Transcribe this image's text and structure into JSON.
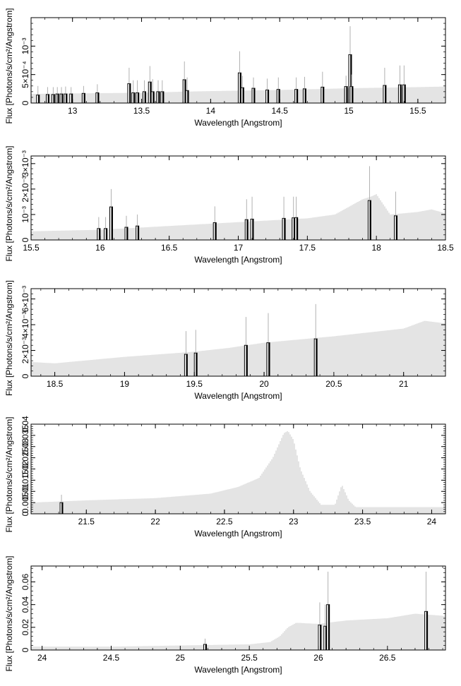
{
  "figure": {
    "common_ylabel": "Flux [Photons/s/cm²/Angstrom]",
    "common_xlabel": "Wavelength [Angstrom]",
    "colors": {
      "model": "#bdbdbd",
      "data": "#000000",
      "bin_outline": "#000000",
      "frame": "#000000"
    }
  },
  "chart_data": [
    {
      "type": "bar",
      "xlabel": "Wavelength [Angstrom]",
      "ylabel": "Flux [Photons/s/cm²/Angstrom]",
      "xlim": [
        12.7,
        15.7
      ],
      "ylim": [
        0,
        0.0015
      ],
      "xticks": [
        13,
        13.5,
        14,
        14.5,
        15,
        15.5
      ],
      "xtick_labels": [
        "13",
        "13.5",
        "14",
        "14.5",
        "15",
        "15.5"
      ],
      "yticks": [
        0,
        0.0005,
        0.001
      ],
      "ytick_labels": [
        "0",
        "5×10⁻⁴",
        "10⁻³"
      ],
      "grid": false,
      "series": [
        {
          "role": "model",
          "style": "dense vertical lines",
          "points": [
            [
              12.7,
              0.00016
            ],
            [
              13.0,
              0.00017
            ],
            [
              13.5,
              0.00018
            ],
            [
              13.8,
              0.0002
            ],
            [
              14.0,
              0.00021
            ],
            [
              14.5,
              0.00023
            ],
            [
              15.0,
              0.00026
            ],
            [
              15.5,
              0.00028
            ],
            [
              15.7,
              0.00029
            ]
          ]
        },
        {
          "role": "data",
          "style": "bins with error bars",
          "bins": [
            [
              12.75,
              0.00014,
              0.0003
            ],
            [
              12.82,
              0.00015,
              0.00028
            ],
            [
              12.86,
              0.00015,
              0.00028
            ],
            [
              12.89,
              0.00016,
              0.00028
            ],
            [
              12.92,
              0.00016,
              0.00028
            ],
            [
              12.95,
              0.00016,
              0.00029
            ],
            [
              12.99,
              0.00016,
              0.00028
            ],
            [
              13.08,
              0.00017,
              0.0003
            ],
            [
              13.18,
              0.00018,
              0.00033
            ],
            [
              13.41,
              0.00034,
              0.00062
            ],
            [
              13.44,
              0.00018,
              0.0004
            ],
            [
              13.47,
              0.00018,
              0.0004
            ],
            [
              13.52,
              0.0002,
              0.0004
            ],
            [
              13.56,
              0.00037,
              0.00065
            ],
            [
              13.58,
              0.0002,
              0.00042
            ],
            [
              13.62,
              0.0002,
              0.0004
            ],
            [
              13.65,
              0.0002,
              0.0004
            ],
            [
              13.81,
              0.00041,
              0.00073
            ],
            [
              13.83,
              0.00022,
              0.00045
            ],
            [
              14.21,
              0.00053,
              0.00091
            ],
            [
              14.23,
              0.00027,
              0.00048
            ],
            [
              14.31,
              0.00026,
              0.00045
            ],
            [
              14.41,
              0.00023,
              0.00043
            ],
            [
              14.49,
              0.00024,
              0.00045
            ],
            [
              14.62,
              0.00024,
              0.00045
            ],
            [
              14.68,
              0.00025,
              0.00046
            ],
            [
              14.81,
              0.00028,
              0.00055
            ],
            [
              14.98,
              0.00029,
              0.00048
            ],
            [
              15.01,
              0.00085,
              0.00135
            ],
            [
              15.02,
              0.00029,
              0.0005
            ],
            [
              15.26,
              0.00031,
              0.00062
            ],
            [
              15.37,
              0.00032,
              0.00066
            ],
            [
              15.4,
              0.00032,
              0.00066
            ]
          ]
        }
      ]
    },
    {
      "type": "bar",
      "xlabel": "Wavelength [Angstrom]",
      "ylabel": "Flux [Photons/s/cm²/Angstrom]",
      "xlim": [
        15.5,
        18.5
      ],
      "ylim": [
        0,
        0.0033
      ],
      "xticks": [
        15.5,
        16,
        16.5,
        17,
        17.5,
        18,
        18.5
      ],
      "xtick_labels": [
        "15.5",
        "16",
        "16.5",
        "17",
        "17.5",
        "18",
        "18.5"
      ],
      "yticks": [
        0,
        0.001,
        0.002,
        0.003
      ],
      "ytick_labels": [
        "0",
        "10⁻³",
        "2×10⁻³",
        "3×10⁻³"
      ],
      "grid": false,
      "series": [
        {
          "role": "model",
          "style": "dense vertical lines",
          "points": [
            [
              15.5,
              0.00034
            ],
            [
              16.0,
              0.0004
            ],
            [
              16.5,
              0.00055
            ],
            [
              17.0,
              0.0007
            ],
            [
              17.5,
              0.00085
            ],
            [
              17.7,
              0.001
            ],
            [
              17.8,
              0.0013
            ],
            [
              17.9,
              0.0016
            ],
            [
              17.96,
              0.0017
            ],
            [
              18.0,
              0.0018
            ],
            [
              18.05,
              0.0014
            ],
            [
              18.1,
              0.001
            ],
            [
              18.3,
              0.0011
            ],
            [
              18.4,
              0.0012
            ],
            [
              18.5,
              0.00105
            ]
          ]
        },
        {
          "role": "data",
          "style": "bins with error bars",
          "bins": [
            [
              15.99,
              0.00045,
              0.0009
            ],
            [
              16.04,
              0.00045,
              0.0009
            ],
            [
              16.08,
              0.0013,
              0.002
            ],
            [
              16.19,
              0.0005,
              0.00095
            ],
            [
              16.27,
              0.00055,
              0.001
            ],
            [
              16.83,
              0.00068,
              0.00132
            ],
            [
              17.06,
              0.0008,
              0.0016
            ],
            [
              17.1,
              0.00082,
              0.0017
            ],
            [
              17.33,
              0.00085,
              0.0017
            ],
            [
              17.4,
              0.00087,
              0.0017
            ],
            [
              17.42,
              0.00088,
              0.0017
            ],
            [
              17.95,
              0.00155,
              0.0029
            ],
            [
              18.14,
              0.00095,
              0.0019
            ]
          ]
        }
      ]
    },
    {
      "type": "bar",
      "xlabel": "Wavelength [Angstrom]",
      "ylabel": "Flux [Photons/s/cm²/Angstrom]",
      "xlim": [
        18.33,
        21.3
      ],
      "ylim": [
        0,
        0.0068
      ],
      "xticks": [
        18.5,
        19,
        19.5,
        20,
        20.5,
        21
      ],
      "xtick_labels": [
        "18.5",
        "19",
        "19.5",
        "20",
        "20.5",
        "21"
      ],
      "yticks": [
        0,
        0.002,
        0.004,
        0.006
      ],
      "ytick_labels": [
        "0",
        "2×10⁻³",
        "4×10⁻³",
        "6×10⁻³"
      ],
      "grid": false,
      "series": [
        {
          "role": "model",
          "style": "dense vertical lines",
          "points": [
            [
              18.33,
              0.0011
            ],
            [
              18.5,
              0.001
            ],
            [
              19.0,
              0.0015
            ],
            [
              19.5,
              0.0019
            ],
            [
              19.75,
              0.0022
            ],
            [
              20.0,
              0.0026
            ],
            [
              20.5,
              0.0031
            ],
            [
              21.0,
              0.0037
            ],
            [
              21.15,
              0.0043
            ],
            [
              21.3,
              0.0041
            ]
          ]
        },
        {
          "role": "data",
          "style": "bins with error bars",
          "bins": [
            [
              19.44,
              0.0017,
              0.0035
            ],
            [
              19.51,
              0.0018,
              0.0036
            ],
            [
              19.87,
              0.0024,
              0.0046
            ],
            [
              20.03,
              0.0026,
              0.0049
            ],
            [
              20.37,
              0.0029,
              0.0056
            ]
          ]
        }
      ]
    },
    {
      "type": "bar",
      "xlabel": "Wavelength [Angstrom]",
      "ylabel": "Flux [Photons/s/cm²/Angstrom]",
      "xlim": [
        21.1,
        24.1
      ],
      "ylim": [
        0,
        0.04
      ],
      "xticks": [
        21.5,
        22,
        22.5,
        23,
        23.5,
        24
      ],
      "xtick_labels": [
        "21.5",
        "22",
        "22.5",
        "23",
        "23.5",
        "24"
      ],
      "yticks": [
        0,
        0.005,
        0.01,
        0.015,
        0.02,
        0.025,
        0.03,
        0.035,
        0.04
      ],
      "ytick_labels": [
        "0",
        "0.005",
        "0.01",
        "0.015",
        "0.02",
        "0.025",
        "0.03",
        "0.035",
        "0.04"
      ],
      "grid": false,
      "series": [
        {
          "role": "model",
          "style": "dense vertical lines",
          "points": [
            [
              21.1,
              0.005
            ],
            [
              21.5,
              0.006
            ],
            [
              22.0,
              0.007
            ],
            [
              22.4,
              0.009
            ],
            [
              22.6,
              0.012
            ],
            [
              22.75,
              0.016
            ],
            [
              22.85,
              0.025
            ],
            [
              22.93,
              0.036
            ],
            [
              22.96,
              0.037
            ],
            [
              23.0,
              0.033
            ],
            [
              23.05,
              0.02
            ],
            [
              23.12,
              0.01
            ],
            [
              23.2,
              0.004
            ],
            [
              23.3,
              0.004
            ],
            [
              23.35,
              0.013
            ],
            [
              23.4,
              0.006
            ],
            [
              23.45,
              0.003
            ],
            [
              24.1,
              0.003
            ]
          ]
        },
        {
          "role": "data",
          "style": "bins with error bars",
          "bins": [
            [
              21.32,
              0.005,
              0.0085
            ]
          ]
        }
      ]
    },
    {
      "type": "bar",
      "xlabel": "Wavelength [Angstrom]",
      "ylabel": "Flux [Photons/s/cm²/Angstrom]",
      "xlim": [
        23.92,
        26.92
      ],
      "ylim": [
        0,
        0.074
      ],
      "xticks": [
        24,
        24.5,
        25,
        25.5,
        26,
        26.5
      ],
      "xtick_labels": [
        "24",
        "24.5",
        "25",
        "25.5",
        "26",
        "26.5"
      ],
      "yticks": [
        0,
        0.02,
        0.04,
        0.06
      ],
      "ytick_labels": [
        "0",
        "0.02",
        "0.04",
        "0.06"
      ],
      "grid": false,
      "series": [
        {
          "role": "model",
          "style": "dense vertical lines",
          "points": [
            [
              23.92,
              0.003
            ],
            [
              24.5,
              0.003
            ],
            [
              25.0,
              0.004
            ],
            [
              25.5,
              0.005
            ],
            [
              25.65,
              0.007
            ],
            [
              25.72,
              0.012
            ],
            [
              25.78,
              0.02
            ],
            [
              25.84,
              0.024
            ],
            [
              26.0,
              0.023
            ],
            [
              26.2,
              0.026
            ],
            [
              26.5,
              0.028
            ],
            [
              26.7,
              0.032
            ],
            [
              26.92,
              0.03
            ]
          ]
        },
        {
          "role": "data",
          "style": "bins with error bars",
          "bins": [
            [
              25.18,
              0.005,
              0.01
            ],
            [
              26.01,
              0.022,
              0.042
            ],
            [
              26.05,
              0.021,
              0.04
            ],
            [
              26.07,
              0.04,
              0.069
            ],
            [
              26.78,
              0.034,
              0.069
            ]
          ]
        }
      ]
    }
  ]
}
